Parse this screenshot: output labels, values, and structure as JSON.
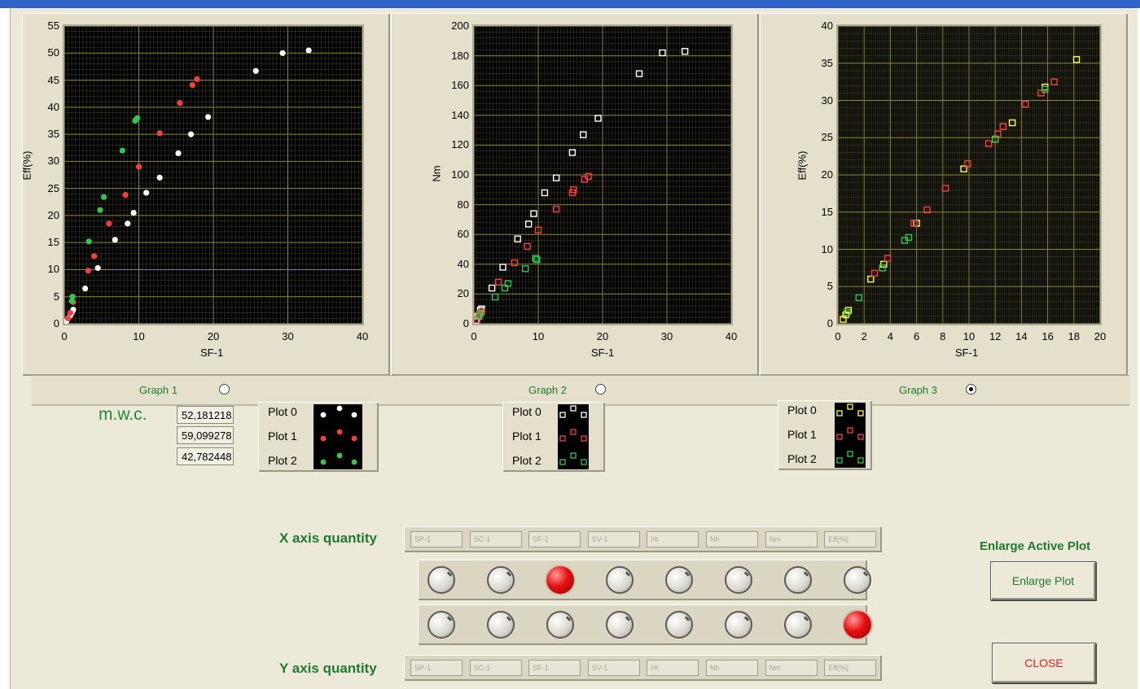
{
  "graphs": [
    {
      "ylabel": "Eff(%)",
      "xlabel": "SF-1",
      "xticks": [
        "0",
        "10",
        "20",
        "30",
        "40"
      ],
      "yticks": [
        "0",
        "5",
        "10",
        "15",
        "20",
        "25",
        "30",
        "35",
        "40",
        "45",
        "50",
        "55"
      ],
      "selector_label": "Graph 1",
      "selected": false
    },
    {
      "ylabel": "Nm",
      "xlabel": "SF-1",
      "xticks": [
        "0",
        "10",
        "20",
        "30",
        "40"
      ],
      "yticks": [
        "0",
        "20",
        "40",
        "60",
        "80",
        "100",
        "120",
        "140",
        "160",
        "180",
        "200"
      ],
      "selector_label": "Graph 2",
      "selected": false
    },
    {
      "ylabel": "Eff(%)",
      "xlabel": "SF-1",
      "xticks": [
        "0",
        "2",
        "4",
        "6",
        "8",
        "10",
        "12",
        "14",
        "16",
        "18",
        "20"
      ],
      "yticks": [
        "0",
        "5",
        "10",
        "15",
        "20",
        "25",
        "30",
        "35",
        "40"
      ],
      "selector_label": "Graph 3",
      "selected": true
    }
  ],
  "chart_data": [
    {
      "type": "scatter",
      "xlabel": "SF-1",
      "ylabel": "Eff(%)",
      "xlim": [
        0,
        40
      ],
      "ylim": [
        0,
        55
      ],
      "grid": true,
      "marker": "dot",
      "series": [
        {
          "color": "#ffffff",
          "points": [
            [
              0.3,
              0.5
            ],
            [
              0.5,
              1
            ],
            [
              0.8,
              1.5
            ],
            [
              1,
              2
            ],
            [
              1.2,
              2.6
            ],
            [
              2.8,
              6.5
            ],
            [
              4.5,
              10.3
            ],
            [
              6.8,
              15.5
            ],
            [
              8.5,
              18.5
            ],
            [
              9.3,
              20.5
            ],
            [
              11,
              24.2
            ],
            [
              12.8,
              27
            ],
            [
              15.3,
              31.5
            ],
            [
              17,
              35
            ],
            [
              19.3,
              38.2
            ],
            [
              25.7,
              46.7
            ],
            [
              29.3,
              50
            ],
            [
              32.8,
              50.5
            ]
          ]
        },
        {
          "color": "#ff3b3b",
          "points": [
            [
              0.5,
              1
            ],
            [
              0.8,
              2
            ],
            [
              1.2,
              4
            ],
            [
              3.2,
              9.8
            ],
            [
              4,
              12.5
            ],
            [
              6,
              18.5
            ],
            [
              8.2,
              23.8
            ],
            [
              10,
              29
            ],
            [
              12.8,
              35.2
            ],
            [
              15.5,
              40.8
            ],
            [
              17.2,
              44.1
            ],
            [
              17.8,
              45.2
            ]
          ]
        },
        {
          "color": "#2ec84a",
          "points": [
            [
              1,
              4.2
            ],
            [
              1.1,
              5
            ],
            [
              3.3,
              15.2
            ],
            [
              4.8,
              21
            ],
            [
              5.3,
              23.4
            ],
            [
              7.8,
              32
            ],
            [
              9.5,
              37.5
            ],
            [
              9.7,
              37.8
            ],
            [
              9.8,
              38
            ]
          ]
        }
      ]
    },
    {
      "type": "scatter",
      "xlabel": "SF-1",
      "ylabel": "Nm",
      "xlim": [
        0,
        40
      ],
      "ylim": [
        0,
        200
      ],
      "grid": true,
      "marker": "square",
      "series": [
        {
          "color": "#ffffff",
          "points": [
            [
              0.3,
              2
            ],
            [
              0.6,
              5
            ],
            [
              1,
              9
            ],
            [
              1.2,
              10
            ],
            [
              2.8,
              24
            ],
            [
              4.5,
              38
            ],
            [
              6.8,
              57
            ],
            [
              8.5,
              67
            ],
            [
              9.3,
              74
            ],
            [
              11,
              88
            ],
            [
              12.8,
              98
            ],
            [
              15.3,
              115
            ],
            [
              17,
              127
            ],
            [
              19.3,
              138
            ],
            [
              25.7,
              168
            ],
            [
              29.3,
              182
            ],
            [
              32.8,
              183
            ]
          ]
        },
        {
          "color": "#ff3b3b",
          "points": [
            [
              0.5,
              3
            ],
            [
              0.8,
              6
            ],
            [
              1.2,
              8
            ],
            [
              3.8,
              28
            ],
            [
              6.3,
              41
            ],
            [
              8.3,
              52
            ],
            [
              10,
              63
            ],
            [
              12.8,
              77
            ],
            [
              15.5,
              90
            ],
            [
              15.3,
              88
            ],
            [
              17.2,
              97
            ],
            [
              17.8,
              99
            ]
          ]
        },
        {
          "color": "#2ec84a",
          "points": [
            [
              0.8,
              5
            ],
            [
              1,
              7
            ],
            [
              3.3,
              18
            ],
            [
              4.8,
              24
            ],
            [
              5.3,
              27
            ],
            [
              8,
              37
            ],
            [
              9.8,
              43
            ],
            [
              9.6,
              44
            ]
          ]
        }
      ]
    },
    {
      "type": "scatter",
      "xlabel": "SF-1",
      "ylabel": "Eff(%)",
      "xlim": [
        0,
        20
      ],
      "ylim": [
        0,
        40
      ],
      "grid": true,
      "marker": "square",
      "series": [
        {
          "color": "#ffff40",
          "points": [
            [
              0.4,
              0.6
            ],
            [
              0.6,
              1.2
            ],
            [
              0.8,
              1.8
            ],
            [
              2.5,
              6
            ],
            [
              3.5,
              8
            ],
            [
              6,
              13.5
            ],
            [
              9.6,
              20.8
            ],
            [
              12,
              24.8
            ],
            [
              13.3,
              27
            ],
            [
              15.8,
              31.8
            ],
            [
              18.2,
              35.5
            ]
          ]
        },
        {
          "color": "#ff3b3b",
          "points": [
            [
              2.8,
              6.8
            ],
            [
              3.8,
              8.8
            ],
            [
              5.8,
              13.5
            ],
            [
              6.8,
              15.3
            ],
            [
              8.2,
              18.2
            ],
            [
              9.9,
              21.5
            ],
            [
              11.5,
              24.2
            ],
            [
              12.2,
              25.5
            ],
            [
              12.6,
              26.5
            ],
            [
              14.3,
              29.5
            ],
            [
              15.5,
              31
            ],
            [
              16.5,
              32.5
            ]
          ]
        },
        {
          "color": "#2ec84a",
          "points": [
            [
              0.7,
              1.5
            ],
            [
              1.6,
              3.5
            ],
            [
              3.4,
              7.5
            ],
            [
              5.1,
              11.2
            ],
            [
              5.4,
              11.6
            ],
            [
              12,
              24.8
            ],
            [
              15.8,
              31.5
            ]
          ]
        }
      ]
    }
  ],
  "mwc": {
    "label": "m.w.c.",
    "values": [
      "52,181218",
      "59,099278",
      "42,782448"
    ]
  },
  "legends": [
    {
      "plots": [
        "Plot 0",
        "Plot 1",
        "Plot 2"
      ],
      "marker": "dot",
      "colors": [
        "#ffffff",
        "#ff3b3b",
        "#2ec84a"
      ]
    },
    {
      "plots": [
        "Plot 0",
        "Plot 1",
        "Plot 2"
      ],
      "marker": "square",
      "colors": [
        "#ffffff",
        "#ff3b3b",
        "#2ec84a"
      ]
    },
    {
      "plots": [
        "Plot 0",
        "Plot 1",
        "Plot 2"
      ],
      "marker": "square",
      "colors": [
        "#ffff40",
        "#ff3b3b",
        "#2ec84a"
      ]
    }
  ],
  "quantities": [
    "SP-1",
    "SC-1",
    "SF-1",
    "SV-1",
    "Ht",
    "Nh",
    "Nm",
    "Eff(%)"
  ],
  "x_axis": {
    "label": "X axis quantity",
    "selected_index": 2
  },
  "y_axis": {
    "label": "Y axis quantity",
    "selected_index": 7
  },
  "enlarge": {
    "title": "Enlarge Active Plot",
    "button_label": "Enlarge Plot"
  },
  "close_label": "CLOSE",
  "colors": {
    "label_green": "#1e7a2e",
    "close_red": "#e02020",
    "knob_active": "#e51010",
    "grid_olive": "#7a7a30"
  }
}
